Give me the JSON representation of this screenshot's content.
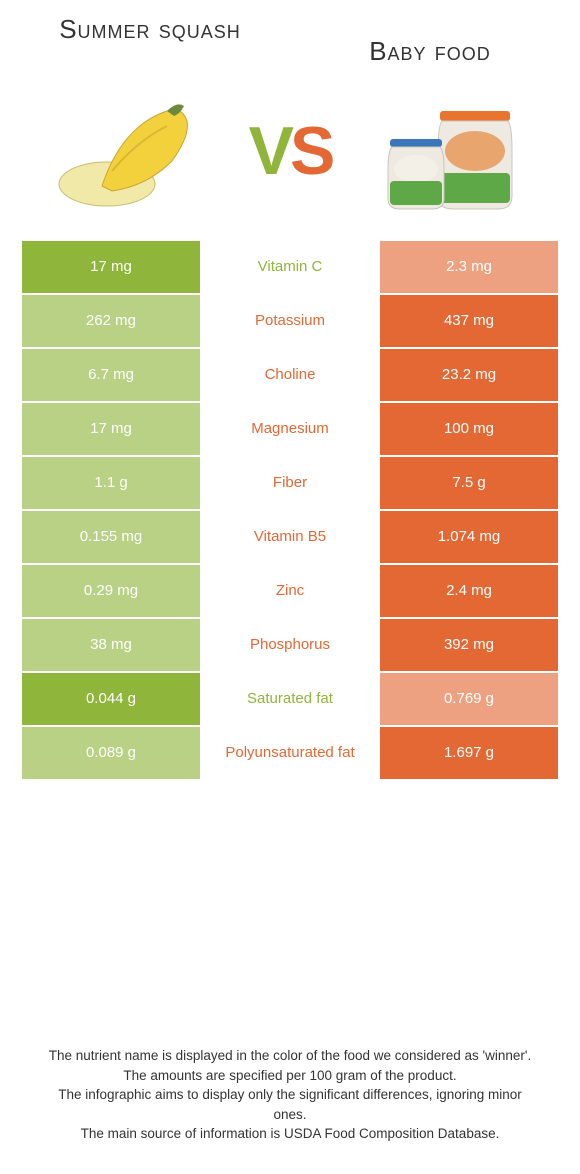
{
  "colors": {
    "green": "#8fb53a",
    "orange": "#e46834",
    "text": "#333333",
    "bg": "#ffffff"
  },
  "left_title": "Summer squash",
  "right_title": "Baby food",
  "vs": {
    "v": "V",
    "s": "S"
  },
  "rows": [
    {
      "left": "17 mg",
      "label": "Vitamin C",
      "right": "2.3 mg",
      "winner": "left"
    },
    {
      "left": "262 mg",
      "label": "Potassium",
      "right": "437 mg",
      "winner": "right"
    },
    {
      "left": "6.7 mg",
      "label": "Choline",
      "right": "23.2 mg",
      "winner": "right"
    },
    {
      "left": "17 mg",
      "label": "Magnesium",
      "right": "100 mg",
      "winner": "right"
    },
    {
      "left": "1.1 g",
      "label": "Fiber",
      "right": "7.5 g",
      "winner": "right"
    },
    {
      "left": "0.155 mg",
      "label": "Vitamin B5",
      "right": "1.074 mg",
      "winner": "right"
    },
    {
      "left": "0.29 mg",
      "label": "Zinc",
      "right": "2.4 mg",
      "winner": "right"
    },
    {
      "left": "38 mg",
      "label": "Phosphorus",
      "right": "392 mg",
      "winner": "right"
    },
    {
      "left": "0.044 g",
      "label": "Saturated fat",
      "right": "0.769 g",
      "winner": "left"
    },
    {
      "left": "0.089 g",
      "label": "Polyunsaturated fat",
      "right": "1.697 g",
      "winner": "right"
    }
  ],
  "footer": {
    "l1": "The nutrient name is displayed in the color of the food we considered as 'winner'.",
    "l2": "The amounts are specified per 100 gram of the product.",
    "l3": "The infographic aims to display only the significant differences, ignoring minor ones.",
    "l4": "The main source of information is USDA Food Composition Database."
  }
}
